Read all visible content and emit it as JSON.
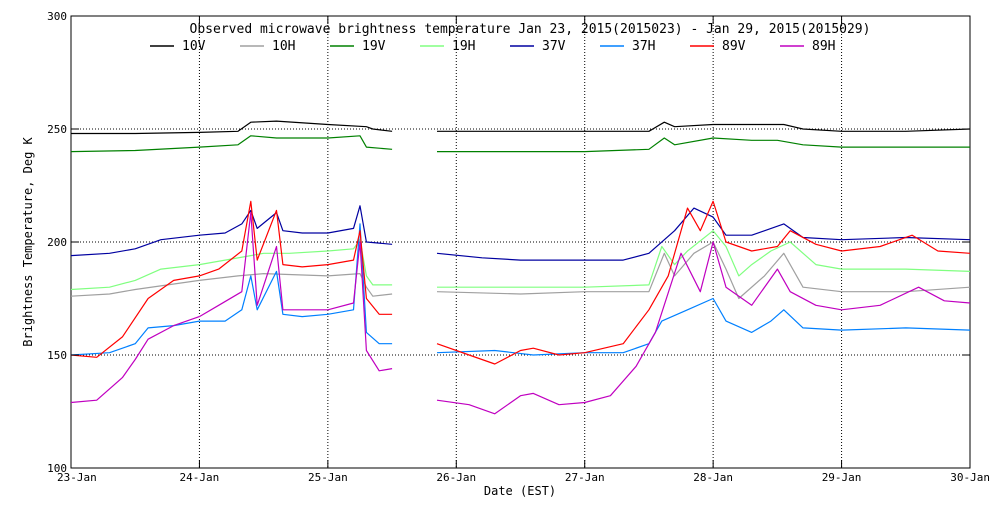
{
  "chart_data": {
    "type": "line",
    "title": "Observed microwave brightness temperature Jan 23, 2015(2015023) - Jan 29, 2015(2015029)",
    "xlabel": "Date (EST)",
    "ylabel": "Brightness Temperature, Deg K",
    "xlim": [
      0,
      7
    ],
    "ylim": [
      100,
      300
    ],
    "y_ticks": [
      100,
      150,
      200,
      250,
      300
    ],
    "x_ticks": [
      {
        "x": 0,
        "label": "23-Jan"
      },
      {
        "x": 1,
        "label": "24-Jan"
      },
      {
        "x": 2,
        "label": "25-Jan"
      },
      {
        "x": 3,
        "label": "26-Jan"
      },
      {
        "x": 4,
        "label": "27-Jan"
      },
      {
        "x": 5,
        "label": "28-Jan"
      },
      {
        "x": 6,
        "label": "29-Jan"
      },
      {
        "x": 7,
        "label": "30-Jan"
      }
    ],
    "x_unit": "days since 23-Jan 00:00 EST",
    "series": [
      {
        "name": "10V",
        "color": "#000000",
        "segments": [
          [
            [
              0,
              248
            ],
            [
              0.5,
              248
            ],
            [
              1,
              248.5
            ],
            [
              1.3,
              249
            ],
            [
              1.4,
              253
            ],
            [
              1.6,
              253.5
            ],
            [
              2,
              252
            ],
            [
              2.3,
              251
            ],
            [
              2.35,
              250
            ],
            [
              2.5,
              249
            ]
          ],
          [
            [
              2.85,
              249
            ],
            [
              3.5,
              249
            ],
            [
              4,
              249
            ],
            [
              4.5,
              249
            ],
            [
              4.62,
              253
            ],
            [
              4.7,
              251
            ],
            [
              5,
              252
            ],
            [
              5.3,
              252
            ],
            [
              5.55,
              252
            ],
            [
              5.7,
              250
            ],
            [
              6,
              249
            ],
            [
              6.5,
              249
            ],
            [
              7,
              250
            ]
          ]
        ]
      },
      {
        "name": "10H",
        "color": "#a0a0a0",
        "segments": [
          [
            [
              0,
              176
            ],
            [
              0.3,
              177
            ],
            [
              0.5,
              179
            ],
            [
              1,
              183
            ],
            [
              1.3,
              185
            ],
            [
              1.5,
              186
            ],
            [
              2,
              185
            ],
            [
              2.25,
              186
            ],
            [
              2.3,
              180
            ],
            [
              2.35,
              176
            ],
            [
              2.5,
              177
            ]
          ],
          [
            [
              2.85,
              178
            ],
            [
              3.5,
              177
            ],
            [
              4,
              178
            ],
            [
              4.5,
              178
            ],
            [
              4.62,
              195
            ],
            [
              4.7,
              185
            ],
            [
              4.85,
              195
            ],
            [
              5,
              200
            ],
            [
              5.1,
              188
            ],
            [
              5.2,
              175
            ],
            [
              5.4,
              185
            ],
            [
              5.55,
              195
            ],
            [
              5.7,
              180
            ],
            [
              6,
              178
            ],
            [
              6.5,
              178
            ],
            [
              7,
              180
            ]
          ]
        ]
      },
      {
        "name": "19V",
        "color": "#008000",
        "segments": [
          [
            [
              0,
              240
            ],
            [
              0.5,
              240.5
            ],
            [
              1,
              242
            ],
            [
              1.3,
              243
            ],
            [
              1.4,
              247
            ],
            [
              1.6,
              246
            ],
            [
              2,
              246
            ],
            [
              2.25,
              247
            ],
            [
              2.3,
              242
            ],
            [
              2.5,
              241
            ]
          ],
          [
            [
              2.85,
              240
            ],
            [
              3.5,
              240
            ],
            [
              4,
              240
            ],
            [
              4.5,
              241
            ],
            [
              4.62,
              246
            ],
            [
              4.7,
              243
            ],
            [
              5,
              246
            ],
            [
              5.3,
              245
            ],
            [
              5.5,
              245
            ],
            [
              5.7,
              243
            ],
            [
              6,
              242
            ],
            [
              6.5,
              242
            ],
            [
              7,
              242
            ]
          ]
        ]
      },
      {
        "name": "19H",
        "color": "#80ff80",
        "segments": [
          [
            [
              0,
              179
            ],
            [
              0.3,
              180
            ],
            [
              0.5,
              183
            ],
            [
              0.7,
              188
            ],
            [
              1,
              190
            ],
            [
              1.2,
              192
            ],
            [
              1.4,
              194
            ],
            [
              1.5,
              195
            ],
            [
              1.7,
              195
            ],
            [
              2,
              196
            ],
            [
              2.2,
              197
            ],
            [
              2.25,
              201
            ],
            [
              2.3,
              185
            ],
            [
              2.35,
              181
            ],
            [
              2.5,
              181
            ]
          ],
          [
            [
              2.85,
              180
            ],
            [
              3.5,
              180
            ],
            [
              4,
              180
            ],
            [
              4.5,
              181
            ],
            [
              4.6,
              198
            ],
            [
              4.7,
              190
            ],
            [
              4.8,
              196
            ],
            [
              5,
              205
            ],
            [
              5.1,
              198
            ],
            [
              5.2,
              185
            ],
            [
              5.3,
              190
            ],
            [
              5.45,
              196
            ],
            [
              5.6,
              200
            ],
            [
              5.8,
              190
            ],
            [
              6,
              188
            ],
            [
              6.5,
              188
            ],
            [
              7,
              187
            ]
          ]
        ]
      },
      {
        "name": "37V",
        "color": "#0000a0",
        "segments": [
          [
            [
              0,
              194
            ],
            [
              0.3,
              195
            ],
            [
              0.5,
              197
            ],
            [
              0.7,
              201
            ],
            [
              1,
              203
            ],
            [
              1.2,
              204
            ],
            [
              1.33,
              208
            ],
            [
              1.4,
              214
            ],
            [
              1.45,
              206
            ],
            [
              1.6,
              213
            ],
            [
              1.65,
              205
            ],
            [
              1.8,
              204
            ],
            [
              2,
              204
            ],
            [
              2.2,
              206
            ],
            [
              2.25,
              216
            ],
            [
              2.3,
              200
            ],
            [
              2.5,
              199
            ]
          ],
          [
            [
              2.85,
              195
            ],
            [
              3.2,
              193
            ],
            [
              3.5,
              192
            ],
            [
              4,
              192
            ],
            [
              4.3,
              192
            ],
            [
              4.5,
              195
            ],
            [
              4.7,
              205
            ],
            [
              4.85,
              215
            ],
            [
              5,
              211
            ],
            [
              5.1,
              203
            ],
            [
              5.3,
              203
            ],
            [
              5.55,
              208
            ],
            [
              5.7,
              202
            ],
            [
              6,
              201
            ],
            [
              6.5,
              202
            ],
            [
              7,
              201
            ]
          ]
        ]
      },
      {
        "name": "37H",
        "color": "#0080ff",
        "segments": [
          [
            [
              0,
              150
            ],
            [
              0.3,
              151
            ],
            [
              0.5,
              155
            ],
            [
              0.6,
              162
            ],
            [
              0.8,
              163
            ],
            [
              1,
              165
            ],
            [
              1.2,
              165
            ],
            [
              1.33,
              170
            ],
            [
              1.4,
              185
            ],
            [
              1.45,
              170
            ],
            [
              1.6,
              187
            ],
            [
              1.65,
              168
            ],
            [
              1.8,
              167
            ],
            [
              2,
              168
            ],
            [
              2.2,
              170
            ],
            [
              2.25,
              208
            ],
            [
              2.3,
              160
            ],
            [
              2.4,
              155
            ],
            [
              2.5,
              155
            ]
          ],
          [
            [
              2.85,
              151
            ],
            [
              3.3,
              152
            ],
            [
              3.6,
              150
            ],
            [
              4,
              151
            ],
            [
              4.3,
              151
            ],
            [
              4.5,
              155
            ],
            [
              4.6,
              165
            ],
            [
              4.8,
              170
            ],
            [
              5,
              175
            ],
            [
              5.1,
              165
            ],
            [
              5.3,
              160
            ],
            [
              5.45,
              165
            ],
            [
              5.55,
              170
            ],
            [
              5.7,
              162
            ],
            [
              6,
              161
            ],
            [
              6.5,
              162
            ],
            [
              7,
              161
            ]
          ]
        ]
      },
      {
        "name": "89V",
        "color": "#ff0000",
        "segments": [
          [
            [
              0,
              150
            ],
            [
              0.2,
              149
            ],
            [
              0.4,
              158
            ],
            [
              0.6,
              175
            ],
            [
              0.8,
              183
            ],
            [
              1,
              185
            ],
            [
              1.15,
              188
            ],
            [
              1.33,
              196
            ],
            [
              1.4,
              218
            ],
            [
              1.45,
              192
            ],
            [
              1.6,
              214
            ],
            [
              1.65,
              190
            ],
            [
              1.8,
              189
            ],
            [
              2,
              190
            ],
            [
              2.2,
              192
            ],
            [
              2.25,
              205
            ],
            [
              2.3,
              175
            ],
            [
              2.4,
              168
            ],
            [
              2.5,
              168
            ]
          ],
          [
            [
              2.85,
              155
            ],
            [
              3.1,
              150
            ],
            [
              3.3,
              146
            ],
            [
              3.5,
              152
            ],
            [
              3.6,
              153
            ],
            [
              3.8,
              150
            ],
            [
              4,
              151
            ],
            [
              4.3,
              155
            ],
            [
              4.5,
              170
            ],
            [
              4.65,
              185
            ],
            [
              4.8,
              215
            ],
            [
              4.9,
              205
            ],
            [
              5,
              218
            ],
            [
              5.1,
              200
            ],
            [
              5.3,
              196
            ],
            [
              5.5,
              198
            ],
            [
              5.6,
              205
            ],
            [
              5.8,
              199
            ],
            [
              6,
              196
            ],
            [
              6.3,
              198
            ],
            [
              6.55,
              203
            ],
            [
              6.75,
              196
            ],
            [
              7,
              195
            ]
          ]
        ]
      },
      {
        "name": "89H",
        "color": "#c000c0",
        "segments": [
          [
            [
              0,
              129
            ],
            [
              0.2,
              130
            ],
            [
              0.4,
              140
            ],
            [
              0.5,
              148
            ],
            [
              0.6,
              157
            ],
            [
              0.8,
              163
            ],
            [
              1,
              167
            ],
            [
              1.15,
              172
            ],
            [
              1.33,
              178
            ],
            [
              1.4,
              213
            ],
            [
              1.45,
              172
            ],
            [
              1.6,
              198
            ],
            [
              1.65,
              170
            ],
            [
              1.8,
              170
            ],
            [
              2,
              170
            ],
            [
              2.2,
              173
            ],
            [
              2.25,
              200
            ],
            [
              2.3,
              152
            ],
            [
              2.4,
              143
            ],
            [
              2.5,
              144
            ]
          ],
          [
            [
              2.85,
              130
            ],
            [
              3.1,
              128
            ],
            [
              3.3,
              124
            ],
            [
              3.5,
              132
            ],
            [
              3.6,
              133
            ],
            [
              3.8,
              128
            ],
            [
              4,
              129
            ],
            [
              4.2,
              132
            ],
            [
              4.4,
              145
            ],
            [
              4.55,
              160
            ],
            [
              4.75,
              195
            ],
            [
              4.9,
              178
            ],
            [
              5,
              200
            ],
            [
              5.1,
              180
            ],
            [
              5.3,
              172
            ],
            [
              5.5,
              188
            ],
            [
              5.6,
              178
            ],
            [
              5.8,
              172
            ],
            [
              6,
              170
            ],
            [
              6.3,
              172
            ],
            [
              6.6,
              180
            ],
            [
              6.8,
              174
            ],
            [
              7,
              173
            ]
          ]
        ]
      }
    ]
  }
}
